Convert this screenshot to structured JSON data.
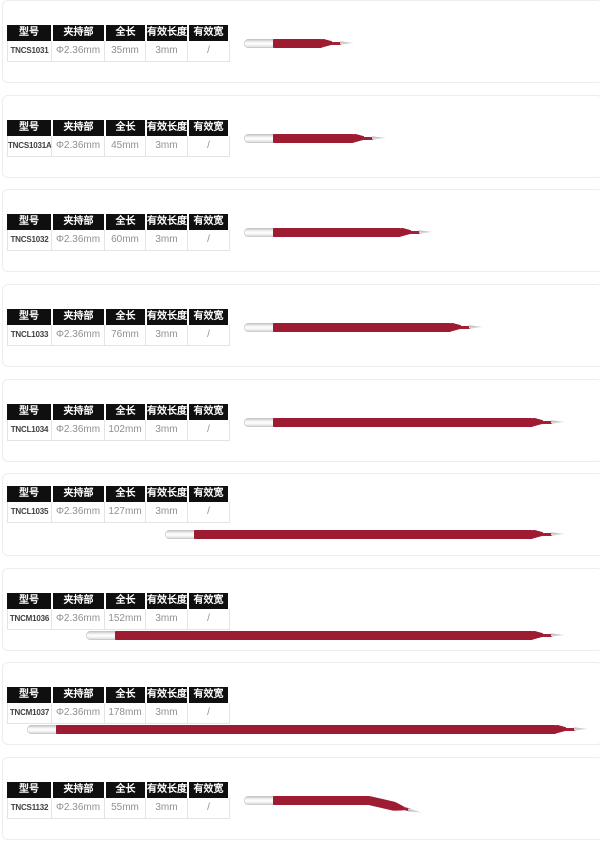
{
  "table_headers": [
    "型号",
    "夹持部",
    "全长",
    "有效长度",
    "有效宽度"
  ],
  "colors": {
    "red_body": "#9d1c32",
    "red_wire": "#a32038",
    "header_bg": "#0f0f0f"
  },
  "rows": [
    {
      "model": "TNCS1031",
      "clamp": "Φ2.36mm",
      "total_length": "35mm",
      "effective_length": "3mm",
      "effective_width": "/",
      "len_mm": 35,
      "bent": false
    },
    {
      "model": "TNCS1031A",
      "clamp": "Φ2.36mm",
      "total_length": "45mm",
      "effective_length": "3mm",
      "effective_width": "/",
      "len_mm": 45,
      "bent": false
    },
    {
      "model": "TNCS1032",
      "clamp": "Φ2.36mm",
      "total_length": "60mm",
      "effective_length": "3mm",
      "effective_width": "/",
      "len_mm": 60,
      "bent": false
    },
    {
      "model": "TNCL1033",
      "clamp": "Φ2.36mm",
      "total_length": "76mm",
      "effective_length": "3mm",
      "effective_width": "/",
      "len_mm": 76,
      "bent": false
    },
    {
      "model": "TNCL1034",
      "clamp": "Φ2.36mm",
      "total_length": "102mm",
      "effective_length": "3mm",
      "effective_width": "/",
      "len_mm": 102,
      "bent": false
    },
    {
      "model": "TNCL1035",
      "clamp": "Φ2.36mm",
      "total_length": "127mm",
      "effective_length": "3mm",
      "effective_width": "/",
      "len_mm": 127,
      "bent": false
    },
    {
      "model": "TNCM1036",
      "clamp": "Φ2.36mm",
      "total_length": "152mm",
      "effective_length": "3mm",
      "effective_width": "/",
      "len_mm": 152,
      "bent": false
    },
    {
      "model": "TNCM1037",
      "clamp": "Φ2.36mm",
      "total_length": "178mm",
      "effective_length": "3mm",
      "effective_width": "/",
      "len_mm": 178,
      "bent": false
    },
    {
      "model": "TNCS1132",
      "clamp": "Φ2.36mm",
      "total_length": "55mm",
      "effective_length": "3mm",
      "effective_width": "/",
      "len_mm": 55,
      "bent": true
    }
  ]
}
